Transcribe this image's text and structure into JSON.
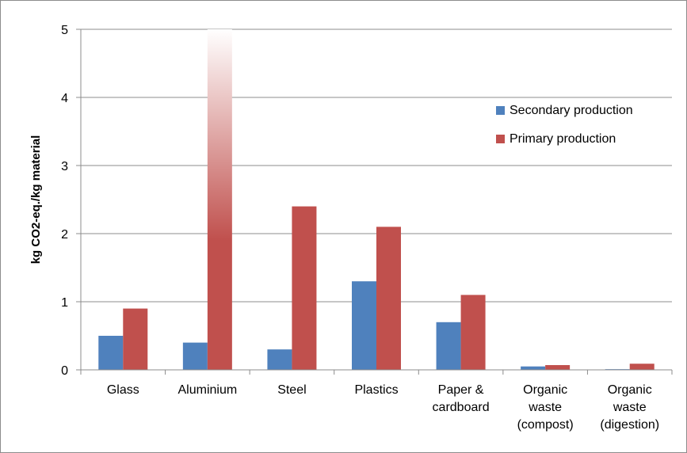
{
  "chart_data": {
    "type": "bar",
    "title": "",
    "xlabel": "",
    "ylabel": "kg CO2-eq./kg material",
    "ylim": [
      0,
      5
    ],
    "yticks": [
      "0",
      "1",
      "2",
      "3",
      "4",
      "5"
    ],
    "categories": [
      [
        "Glass"
      ],
      [
        "Aluminium"
      ],
      [
        "Steel"
      ],
      [
        "Plastics"
      ],
      [
        "Paper &",
        "cardboard"
      ],
      [
        "Organic",
        "waste",
        "(compost)"
      ],
      [
        "Organic",
        "waste",
        "(digestion)"
      ]
    ],
    "series": [
      {
        "name": "Secondary production",
        "color": "#4f81bd",
        "values": [
          0.5,
          0.4,
          0.3,
          1.3,
          0.7,
          0.05,
          0.01
        ]
      },
      {
        "name": "Primary production",
        "color": "#c0504d",
        "values": [
          0.9,
          5.0,
          2.4,
          2.1,
          1.1,
          0.07,
          0.09
        ]
      }
    ],
    "notes": "Aluminium primary production bar exceeds the axis maximum; drawn with a fade to white at the top.",
    "grid": true,
    "legend_position": "top-right"
  }
}
